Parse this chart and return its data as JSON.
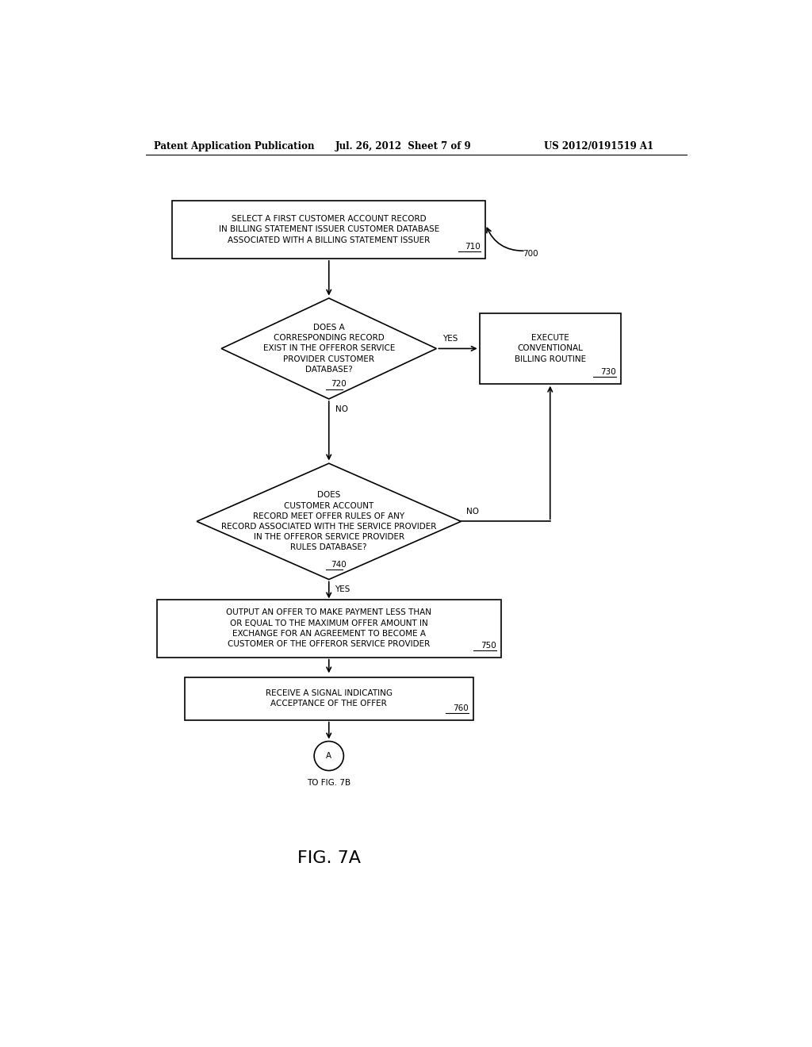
{
  "bg_color": "#ffffff",
  "text_color": "#000000",
  "header_left": "Patent Application Publication",
  "header_mid": "Jul. 26, 2012  Sheet 7 of 9",
  "header_right": "US 2012/0191519 A1",
  "figure_label": "FIG. 7A",
  "box710_text": "SELECT A FIRST CUSTOMER ACCOUNT RECORD\nIN BILLING STATEMENT ISSUER CUSTOMER DATABASE\nASSOCIATED WITH A BILLING STATEMENT ISSUER",
  "box710_label": "710",
  "diamond720_text": "DOES A\nCORRESPONDING RECORD\nEXIST IN THE OFFEROR SERVICE\nPROVIDER CUSTOMER\nDATABASE?",
  "diamond720_label": "720",
  "box730_text": "EXECUTE\nCONVENTIONAL\nBILLING ROUTINE",
  "box730_label": "730",
  "diamond740_text": "DOES\nCUSTOMER ACCOUNT\nRECORD MEET OFFER RULES OF ANY\nRECORD ASSOCIATED WITH THE SERVICE PROVIDER\nIN THE OFFEROR SERVICE PROVIDER\nRULES DATABASE?",
  "diamond740_label": "740",
  "box750_text": "OUTPUT AN OFFER TO MAKE PAYMENT LESS THAN\nOR EQUAL TO THE MAXIMUM OFFER AMOUNT IN\nEXCHANGE FOR AN AGREEMENT TO BECOME A\nCUSTOMER OF THE OFFEROR SERVICE PROVIDER",
  "box750_label": "750",
  "box760_text": "RECEIVE A SIGNAL INDICATING\nACCEPTANCE OF THE OFFER",
  "box760_label": "760",
  "connector_label": "A",
  "connector_text": "TO FIG. 7B",
  "start_label": "700",
  "yes_label_720": "YES",
  "no_label_720": "NO",
  "yes_label_740": "YES",
  "no_label_740": "NO",
  "font_size_small": 7.5,
  "font_size_header": 8.5,
  "font_size_fig": 16
}
